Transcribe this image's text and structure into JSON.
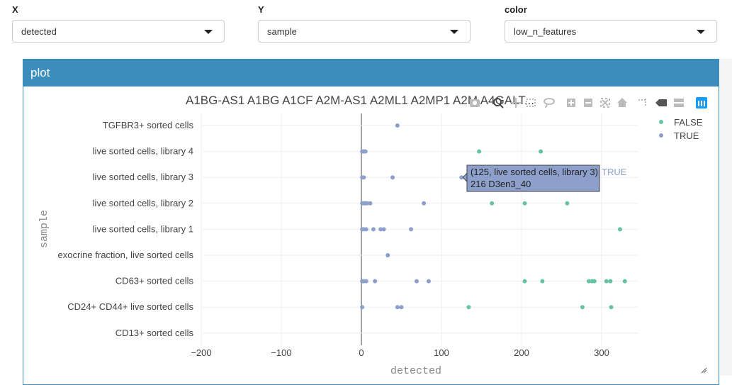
{
  "controls": {
    "x": {
      "label": "X",
      "value": "detected"
    },
    "y": {
      "label": "Y",
      "value": "sample"
    },
    "color": {
      "label": "color",
      "value": "low_n_features"
    }
  },
  "panel": {
    "title": "plot"
  },
  "modebar": {
    "icons": [
      "camera-icon",
      "zoom-icon",
      "pan-icon",
      "box-select-icon",
      "lasso-icon",
      "zoom-in-icon",
      "zoom-out-icon",
      "autoscale-icon",
      "reset-axes-icon",
      "spike-lines-icon",
      "hover-closest-icon",
      "hover-compare-icon",
      "plotly-logo-icon"
    ]
  },
  "tooltip": {
    "line1": "(125, live sorted cells, library 3)",
    "line2": "216   D3en3_40",
    "series": "TRUE"
  },
  "colors": {
    "FALSE": "#66c2a5",
    "TRUE": "#8da0cb",
    "accent": "#3c8dbc"
  },
  "chart_data": {
    "type": "scatter",
    "title": "A1BG-AS1 A1BG A1CF A2M-AS1 A2ML1 A2MP1 A2M A4GALT...",
    "xlabel": "detected",
    "ylabel": "sample",
    "xlim": [
      -210,
      345
    ],
    "xticks": [
      -200,
      -100,
      0,
      100,
      200,
      300
    ],
    "xtick_labels": [
      "−200",
      "−100",
      "0",
      "100",
      "200",
      "300"
    ],
    "categories": [
      "CD13+ sorted cells",
      "CD24+ CD44+ live sorted cells",
      "CD63+ sorted cells",
      "exocrine fraction, live sorted cells",
      "live sorted cells, library 1",
      "live sorted cells, library 2",
      "live sorted cells, library 3",
      "live sorted cells, library 4",
      "TGFBR3+ sorted cells"
    ],
    "grid": true,
    "legend": {
      "position": "top-right",
      "entries": [
        "FALSE",
        "TRUE"
      ]
    },
    "series": [
      {
        "name": "FALSE",
        "points": [
          [
            147,
            "live sorted cells, library 4"
          ],
          [
            224,
            "live sorted cells, library 4"
          ],
          [
            163,
            "live sorted cells, library 2"
          ],
          [
            204,
            "live sorted cells, library 2"
          ],
          [
            257,
            "live sorted cells, library 2"
          ],
          [
            323,
            "live sorted cells, library 1"
          ],
          [
            204,
            "CD63+ sorted cells"
          ],
          [
            226,
            "CD63+ sorted cells"
          ],
          [
            284,
            "CD63+ sorted cells"
          ],
          [
            288,
            "CD63+ sorted cells"
          ],
          [
            291,
            "CD63+ sorted cells"
          ],
          [
            306,
            "CD63+ sorted cells"
          ],
          [
            311,
            "CD63+ sorted cells"
          ],
          [
            329,
            "CD63+ sorted cells"
          ],
          [
            134,
            "CD24+ CD44+ live sorted cells"
          ],
          [
            276,
            "CD24+ CD44+ live sorted cells"
          ],
          [
            312,
            "CD24+ CD44+ live sorted cells"
          ]
        ]
      },
      {
        "name": "TRUE",
        "points": [
          [
            45,
            "TGFBR3+ sorted cells"
          ],
          [
            1,
            "live sorted cells, library 4"
          ],
          [
            3,
            "live sorted cells, library 4"
          ],
          [
            5,
            "live sorted cells, library 4"
          ],
          [
            1,
            "live sorted cells, library 3"
          ],
          [
            3,
            "live sorted cells, library 3"
          ],
          [
            39,
            "live sorted cells, library 3"
          ],
          [
            125,
            "live sorted cells, library 3"
          ],
          [
            1,
            "live sorted cells, library 2"
          ],
          [
            3,
            "live sorted cells, library 2"
          ],
          [
            5,
            "live sorted cells, library 2"
          ],
          [
            7,
            "live sorted cells, library 2"
          ],
          [
            11,
            "live sorted cells, library 2"
          ],
          [
            78,
            "live sorted cells, library 2"
          ],
          [
            1,
            "live sorted cells, library 1"
          ],
          [
            3,
            "live sorted cells, library 1"
          ],
          [
            6,
            "live sorted cells, library 1"
          ],
          [
            15,
            "live sorted cells, library 1"
          ],
          [
            24,
            "live sorted cells, library 1"
          ],
          [
            28,
            "live sorted cells, library 1"
          ],
          [
            62,
            "live sorted cells, library 1"
          ],
          [
            33,
            "exocrine fraction, live sorted cells"
          ],
          [
            1,
            "CD63+ sorted cells"
          ],
          [
            3,
            "CD63+ sorted cells"
          ],
          [
            6,
            "CD63+ sorted cells"
          ],
          [
            17,
            "CD63+ sorted cells"
          ],
          [
            69,
            "CD63+ sorted cells"
          ],
          [
            84,
            "CD63+ sorted cells"
          ],
          [
            1,
            "CD24+ CD44+ live sorted cells"
          ],
          [
            45,
            "CD24+ CD44+ live sorted cells"
          ],
          [
            50,
            "CD24+ CD44+ live sorted cells"
          ]
        ]
      }
    ]
  }
}
